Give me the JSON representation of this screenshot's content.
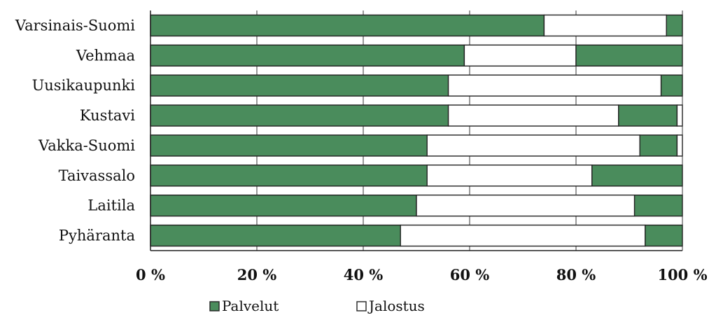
{
  "chart_data": {
    "type": "bar",
    "orientation": "horizontal",
    "stacked": "percent",
    "categories": [
      "Varsinais-Suomi",
      "Vehmaa",
      "Uusikaupunki",
      "Kustavi",
      "Vakka-Suomi",
      "Taivassalo",
      "Laitila",
      "Pyhäranta"
    ],
    "series": [
      {
        "name": "Palvelut",
        "color": "#4a8c5c",
        "values": [
          74,
          59,
          56,
          56,
          52,
          52,
          50,
          47
        ]
      },
      {
        "name": "Jalostus",
        "color": "#ffffff",
        "values": [
          23,
          21,
          40,
          32,
          40,
          31,
          41,
          46
        ]
      },
      {
        "name": "",
        "color": "#4a8c5c",
        "values": [
          3,
          20,
          4,
          11,
          7,
          17,
          9,
          7
        ]
      },
      {
        "name": "",
        "color": "#ffffff",
        "values": [
          0,
          0,
          0,
          1,
          1,
          0,
          0,
          0
        ]
      }
    ],
    "xlim": [
      0,
      100
    ],
    "x_ticks": [
      "0 %",
      "20 %",
      "40 %",
      "60 %",
      "80 %",
      "100 %"
    ],
    "grid": "vertical",
    "legend": "bottom",
    "legend_entries": [
      "Palvelut",
      "Jalostus"
    ],
    "title": "",
    "xlabel": "",
    "ylabel": ""
  }
}
